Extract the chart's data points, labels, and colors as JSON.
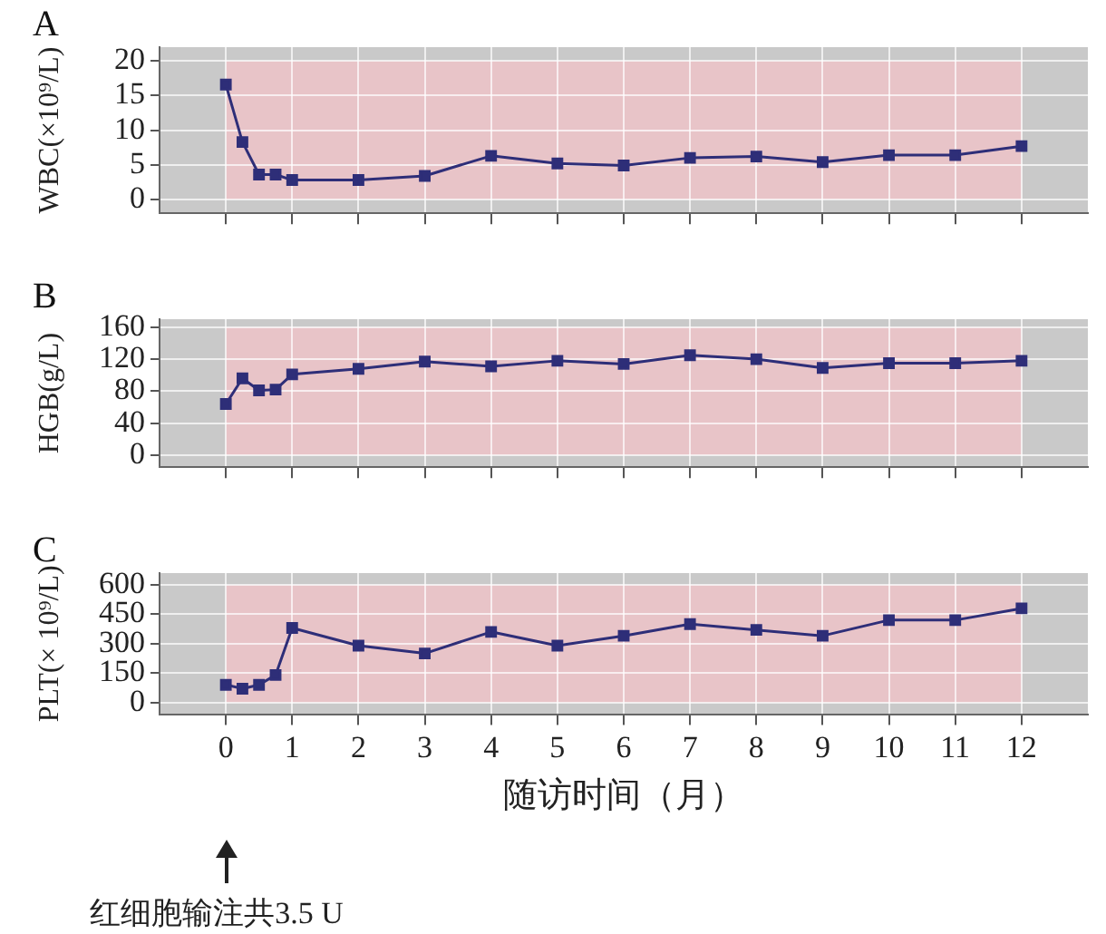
{
  "chart_data": [
    {
      "type": "line",
      "title": "A",
      "ylabel": "WBC(×10⁹/L)",
      "x": [
        0,
        0.25,
        0.5,
        0.75,
        1,
        2,
        3,
        4,
        5,
        6,
        7,
        8,
        9,
        10,
        11,
        12
      ],
      "series": [
        {
          "color": "#2e2e78",
          "values": [
            16.6,
            8.3,
            3.6,
            3.6,
            2.8,
            2.8,
            3.4,
            6.3,
            5.2,
            4.9,
            6.0,
            6.2,
            5.4,
            6.4,
            6.4,
            7.7
          ]
        }
      ],
      "xlim": [
        -1,
        13
      ],
      "xticks": [
        0,
        1,
        2,
        3,
        4,
        5,
        6,
        7,
        8,
        9,
        10,
        11,
        12
      ],
      "ylim": [
        -2,
        22
      ],
      "yticks": [
        0,
        5,
        10,
        15,
        20
      ],
      "bands": [
        {
          "axis": "x",
          "from": 0,
          "to": 12,
          "color": "#e8c4c8"
        }
      ],
      "grid": true,
      "marker": "square",
      "line_style": "solid",
      "tick_labels": "y",
      "legend": false
    },
    {
      "type": "line",
      "title": "B",
      "ylabel": "HGB(g/L)",
      "x": [
        0,
        0.25,
        0.5,
        0.75,
        1,
        2,
        3,
        4,
        5,
        6,
        7,
        8,
        9,
        10,
        11,
        12
      ],
      "series": [
        {
          "color": "#2e2e78",
          "values": [
            64,
            96,
            81,
            82,
            101,
            108,
            117,
            111,
            118,
            114,
            125,
            120,
            109,
            115,
            115,
            118
          ]
        }
      ],
      "xlim": [
        -1,
        13
      ],
      "xticks": [
        0,
        1,
        2,
        3,
        4,
        5,
        6,
        7,
        8,
        9,
        10,
        11,
        12
      ],
      "ylim": [
        -15,
        170
      ],
      "yticks": [
        0,
        40,
        80,
        120,
        160
      ],
      "bands": [
        {
          "axis": "x",
          "from": 0,
          "to": 12,
          "color": "#e8c4c8"
        }
      ],
      "grid": true,
      "marker": "square",
      "line_style": "solid",
      "tick_labels": "y",
      "legend": false
    },
    {
      "type": "line",
      "title": "C",
      "ylabel": "PLT(× 10⁹/L)",
      "xlabel": "随访时间（月）",
      "x": [
        0,
        0.25,
        0.5,
        0.75,
        1,
        2,
        3,
        4,
        5,
        6,
        7,
        8,
        9,
        10,
        11,
        12
      ],
      "series": [
        {
          "color": "#2e2e78",
          "values": [
            90,
            70,
            90,
            140,
            380,
            290,
            250,
            360,
            290,
            340,
            400,
            370,
            340,
            420,
            420,
            480
          ]
        }
      ],
      "xlim": [
        -1,
        13
      ],
      "xticks": [
        0,
        1,
        2,
        3,
        4,
        5,
        6,
        7,
        8,
        9,
        10,
        11,
        12
      ],
      "ylim": [
        -60,
        660
      ],
      "yticks": [
        0,
        150,
        300,
        450,
        600
      ],
      "bands": [
        {
          "axis": "x",
          "from": 0,
          "to": 12,
          "color": "#e8c4c8"
        }
      ],
      "annotations": [
        "红细胞输注共3.5 U"
      ],
      "grid": true,
      "marker": "square",
      "line_style": "solid",
      "legend": false
    }
  ]
}
